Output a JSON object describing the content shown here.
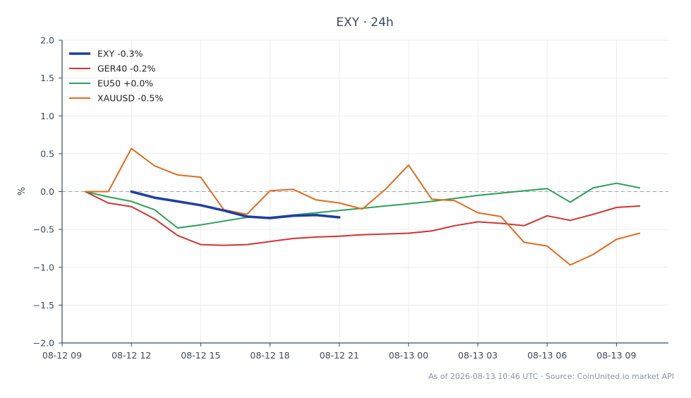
{
  "chart_data": {
    "type": "line",
    "title": "EXY · 24h",
    "xlabel": "",
    "ylabel": "%",
    "ylim": [
      -2.0,
      2.0
    ],
    "yticks": [
      -2.0,
      -1.5,
      -1.0,
      -0.5,
      0.0,
      0.5,
      1.0,
      1.5,
      2.0
    ],
    "ytick_labels": [
      "−2.0",
      "−1.5",
      "−1.0",
      "−0.5",
      "0.0",
      "0.5",
      "1.0",
      "1.5",
      "2.0"
    ],
    "xlim": [
      "2026-08-12 09:00",
      "2026-08-13 11:15"
    ],
    "xticks": [
      "2026-08-12 09:00",
      "2026-08-12 12:00",
      "2026-08-12 15:00",
      "2026-08-12 18:00",
      "2026-08-12 21:00",
      "2026-08-13 00:00",
      "2026-08-13 03:00",
      "2026-08-13 06:00",
      "2026-08-13 09:00"
    ],
    "xtick_labels": [
      "08-12 09",
      "08-12 12",
      "08-12 15",
      "08-12 18",
      "08-12 21",
      "08-13 00",
      "08-13 03",
      "08-13 06",
      "08-13 09"
    ],
    "reference_line": 0.0,
    "grid": true,
    "legend_position": "top-left",
    "series": [
      {
        "name": "EXY -0.3%",
        "color": "#1f3fa0",
        "width": 3.5,
        "x": [
          "2026-08-12 12:00",
          "2026-08-12 13:00",
          "2026-08-12 14:00",
          "2026-08-12 15:00",
          "2026-08-12 16:00",
          "2026-08-12 17:00",
          "2026-08-12 18:00",
          "2026-08-12 19:00",
          "2026-08-12 20:00",
          "2026-08-12 21:00"
        ],
        "y": [
          0.0,
          -0.08,
          -0.13,
          -0.18,
          -0.25,
          -0.33,
          -0.35,
          -0.32,
          -0.31,
          -0.34
        ]
      },
      {
        "name": "GER40 -0.2%",
        "color": "#d03434",
        "width": 2,
        "x": [
          "2026-08-12 10:00",
          "2026-08-12 11:00",
          "2026-08-12 12:00",
          "2026-08-12 13:00",
          "2026-08-12 14:00",
          "2026-08-12 15:00",
          "2026-08-12 16:00",
          "2026-08-12 17:00",
          "2026-08-12 18:00",
          "2026-08-12 19:00",
          "2026-08-12 20:00",
          "2026-08-12 21:00",
          "2026-08-12 22:00",
          "2026-08-12 23:00",
          "2026-08-13 00:00",
          "2026-08-13 01:00",
          "2026-08-13 02:00",
          "2026-08-13 03:00",
          "2026-08-13 04:00",
          "2026-08-13 05:00",
          "2026-08-13 06:00",
          "2026-08-13 07:00",
          "2026-08-13 08:00",
          "2026-08-13 09:00",
          "2026-08-13 10:00"
        ],
        "y": [
          0.0,
          -0.15,
          -0.2,
          -0.36,
          -0.58,
          -0.7,
          -0.71,
          -0.7,
          -0.66,
          -0.62,
          -0.6,
          -0.59,
          -0.57,
          -0.56,
          -0.55,
          -0.52,
          -0.45,
          -0.4,
          -0.42,
          -0.45,
          -0.32,
          -0.38,
          -0.3,
          -0.21,
          -0.19
        ]
      },
      {
        "name": "EU50 +0.0%",
        "color": "#2ca05a",
        "width": 2,
        "x": [
          "2026-08-12 10:00",
          "2026-08-12 11:00",
          "2026-08-12 12:00",
          "2026-08-12 13:00",
          "2026-08-12 14:00",
          "2026-08-12 15:00",
          "2026-08-12 16:00",
          "2026-08-12 17:00",
          "2026-08-12 18:00",
          "2026-08-12 19:00",
          "2026-08-12 20:00",
          "2026-08-12 21:00",
          "2026-08-12 22:00",
          "2026-08-12 23:00",
          "2026-08-13 00:00",
          "2026-08-13 01:00",
          "2026-08-13 02:00",
          "2026-08-13 03:00",
          "2026-08-13 04:00",
          "2026-08-13 05:00",
          "2026-08-13 06:00",
          "2026-08-13 07:00",
          "2026-08-13 08:00",
          "2026-08-13 09:00",
          "2026-08-13 10:00"
        ],
        "y": [
          0.0,
          -0.07,
          -0.13,
          -0.24,
          -0.48,
          -0.44,
          -0.39,
          -0.34,
          -0.34,
          -0.31,
          -0.28,
          -0.25,
          -0.22,
          -0.19,
          -0.16,
          -0.13,
          -0.09,
          -0.05,
          -0.02,
          0.01,
          0.04,
          -0.14,
          0.05,
          0.11,
          0.05
        ]
      },
      {
        "name": "XAUUSD -0.5%",
        "color": "#e06b1f",
        "width": 2,
        "x": [
          "2026-08-12 10:00",
          "2026-08-12 11:00",
          "2026-08-12 12:00",
          "2026-08-12 13:00",
          "2026-08-12 14:00",
          "2026-08-12 15:00",
          "2026-08-12 16:00",
          "2026-08-12 17:00",
          "2026-08-12 18:00",
          "2026-08-12 19:00",
          "2026-08-12 20:00",
          "2026-08-12 21:00",
          "2026-08-12 22:00",
          "2026-08-12 23:00",
          "2026-08-13 00:00",
          "2026-08-13 01:00",
          "2026-08-13 02:00",
          "2026-08-13 03:00",
          "2026-08-13 04:00",
          "2026-08-13 05:00",
          "2026-08-13 06:00",
          "2026-08-13 07:00",
          "2026-08-13 08:00",
          "2026-08-13 09:00",
          "2026-08-13 10:00"
        ],
        "y": [
          0.0,
          0.0,
          0.57,
          0.34,
          0.22,
          0.19,
          -0.24,
          -0.3,
          0.01,
          0.03,
          -0.11,
          -0.15,
          -0.23,
          0.03,
          0.35,
          -0.1,
          -0.12,
          -0.28,
          -0.33,
          -0.67,
          -0.72,
          -0.97,
          -0.83,
          -0.63,
          -0.55
        ]
      }
    ]
  },
  "footer": "As of 2026-08-13 10:46 UTC · Source: CoinUnited.io market API",
  "colors": {
    "axis": "#3d4a5c",
    "grid": "#ececec",
    "zero_line": "#9aa4b5"
  }
}
